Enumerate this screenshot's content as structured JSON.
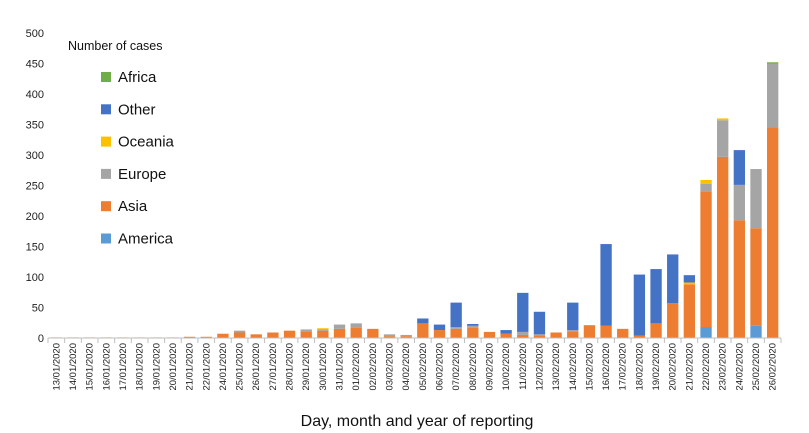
{
  "chart_data": {
    "type": "bar",
    "stacked": true,
    "xlabel": "Day, month and year of reporting",
    "ylabel": "",
    "ylim": [
      0,
      500
    ],
    "yticks": [
      0,
      50,
      100,
      150,
      200,
      250,
      300,
      350,
      400,
      450,
      500
    ],
    "grid": false,
    "legend": {
      "title": "Number of cases",
      "placement": "top-left",
      "order": [
        "Africa",
        "Other",
        "Oceania",
        "Europe",
        "Asia",
        "America"
      ]
    },
    "categories": [
      "13/01/2020",
      "14/01/2020",
      "15/01/2020",
      "16/01/2020",
      "17/01/2020",
      "18/01/2020",
      "19/01/2020",
      "20/01/2020",
      "21/01/2020",
      "22/01/2020",
      "24/01/2020",
      "25/01/2020",
      "26/01/2020",
      "27/01/2020",
      "28/01/2020",
      "29/01/2020",
      "30/01/2020",
      "31/01/2020",
      "01/02/2020",
      "02/02/2020",
      "03/02/2020",
      "04/02/2020",
      "05/02/2020",
      "06/02/2020",
      "07/02/2020",
      "08/02/2020",
      "09/02/2020",
      "10/02/2020",
      "11/02/2020",
      "12/02/2020",
      "13/02/2020",
      "14/02/2020",
      "15/02/2020",
      "16/02/2020",
      "17/02/2020",
      "18/02/2020",
      "19/02/2020",
      "20/02/2020",
      "21/02/2020",
      "22/02/2020",
      "23/02/2020",
      "24/02/2020",
      "25/02/2020",
      "26/02/2020"
    ],
    "series": [
      {
        "name": "America",
        "color": "#5B9BD5",
        "values": [
          0,
          0,
          0,
          0,
          0,
          0,
          0,
          0,
          0,
          0,
          0,
          0,
          0,
          0,
          0,
          0,
          0,
          0,
          0,
          0,
          0,
          0,
          0,
          0,
          0,
          0,
          0,
          0,
          0,
          0,
          0,
          0,
          0,
          0,
          0,
          0,
          0,
          0,
          0,
          18,
          0,
          0,
          20,
          0
        ]
      },
      {
        "name": "Asia",
        "color": "#ED7D31",
        "values": [
          1,
          1,
          1,
          1,
          1,
          1,
          1,
          1,
          2,
          2,
          7,
          9,
          6,
          9,
          12,
          11,
          12,
          15,
          17,
          15,
          3,
          3,
          24,
          13,
          15,
          17,
          10,
          7,
          5,
          4,
          9,
          11,
          21,
          20,
          15,
          4,
          24,
          57,
          88,
          222,
          297,
          193,
          160,
          345
        ]
      },
      {
        "name": "Europe",
        "color": "#A5A5A5",
        "values": [
          0,
          0,
          0,
          0,
          0,
          0,
          0,
          0,
          0,
          0,
          0,
          3,
          0,
          0,
          0,
          3,
          2,
          7,
          7,
          0,
          3,
          2,
          0,
          0,
          3,
          3,
          0,
          0,
          5,
          2,
          0,
          2,
          0,
          0,
          0,
          0,
          0,
          0,
          0,
          13,
          60,
          58,
          97,
          105
        ]
      },
      {
        "name": "Oceania",
        "color": "#FFC000",
        "values": [
          0,
          0,
          0,
          0,
          0,
          0,
          0,
          0,
          0,
          0,
          0,
          0,
          0,
          0,
          0,
          0,
          2,
          0,
          0,
          0,
          0,
          0,
          0,
          0,
          0,
          0,
          0,
          0,
          0,
          0,
          0,
          0,
          0,
          0,
          0,
          0,
          0,
          0,
          3,
          6,
          3,
          0,
          0,
          0
        ]
      },
      {
        "name": "Other",
        "color": "#4472C4",
        "values": [
          0,
          0,
          0,
          0,
          0,
          0,
          0,
          0,
          0,
          0,
          0,
          0,
          0,
          0,
          0,
          0,
          0,
          0,
          0,
          0,
          0,
          0,
          8,
          9,
          40,
          3,
          0,
          6,
          64,
          37,
          0,
          45,
          0,
          134,
          0,
          100,
          89,
          80,
          12,
          0,
          0,
          57,
          0,
          0
        ]
      },
      {
        "name": "Africa",
        "color": "#70AD47",
        "values": [
          0,
          0,
          0,
          0,
          0,
          0,
          0,
          0,
          0,
          0,
          0,
          0,
          0,
          0,
          0,
          0,
          0,
          0,
          0,
          0,
          0,
          0,
          0,
          0,
          0,
          0,
          0,
          0,
          0,
          0,
          0,
          0,
          0,
          0,
          0,
          0,
          0,
          0,
          0,
          0,
          0,
          0,
          0,
          2
        ]
      }
    ]
  }
}
